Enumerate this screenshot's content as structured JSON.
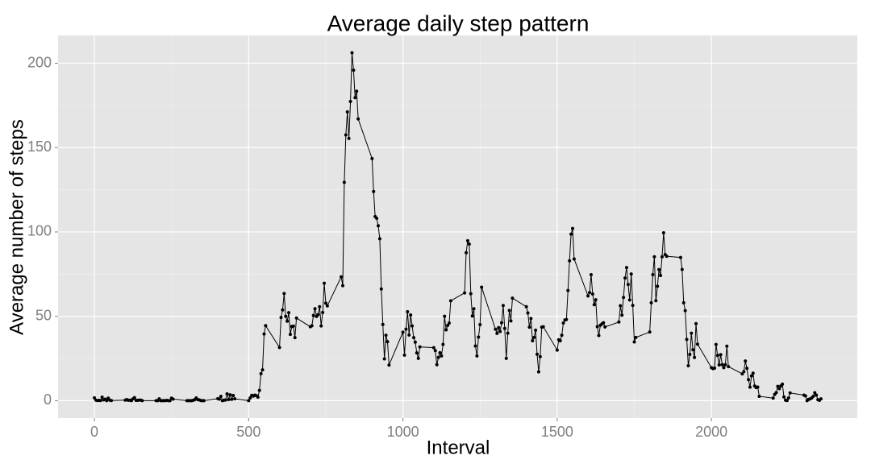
{
  "chart_data": {
    "type": "line",
    "title": "Average daily step pattern",
    "x_label": "Interval",
    "y_label": "Average number of steps",
    "color": "#000000",
    "grid": true,
    "xlim": [
      -117.75,
      2472.75
    ],
    "ylim": [
      -10.31,
      216.48
    ],
    "xticks": [
      0,
      500,
      1000,
      1500,
      2000
    ],
    "yticks": [
      0,
      50,
      100,
      150,
      200
    ],
    "x": [
      0,
      5,
      10,
      15,
      20,
      25,
      30,
      35,
      40,
      45,
      50,
      55,
      100,
      105,
      110,
      115,
      120,
      125,
      130,
      135,
      140,
      145,
      150,
      155,
      200,
      205,
      210,
      215,
      220,
      225,
      230,
      235,
      240,
      245,
      250,
      255,
      300,
      305,
      310,
      315,
      320,
      325,
      330,
      335,
      340,
      345,
      350,
      355,
      400,
      405,
      410,
      415,
      420,
      425,
      430,
      435,
      440,
      445,
      450,
      455,
      500,
      505,
      510,
      515,
      520,
      525,
      530,
      535,
      540,
      545,
      550,
      555,
      600,
      605,
      610,
      615,
      620,
      625,
      630,
      635,
      640,
      645,
      650,
      655,
      700,
      705,
      710,
      715,
      720,
      725,
      730,
      735,
      740,
      745,
      750,
      755,
      800,
      805,
      810,
      815,
      820,
      825,
      830,
      835,
      840,
      845,
      850,
      855,
      900,
      905,
      910,
      915,
      920,
      925,
      930,
      935,
      940,
      945,
      950,
      955,
      1000,
      1005,
      1010,
      1015,
      1020,
      1025,
      1030,
      1035,
      1040,
      1045,
      1050,
      1055,
      1100,
      1105,
      1110,
      1115,
      1120,
      1125,
      1130,
      1135,
      1140,
      1145,
      1150,
      1155,
      1200,
      1205,
      1210,
      1215,
      1220,
      1225,
      1230,
      1235,
      1240,
      1245,
      1250,
      1255,
      1300,
      1305,
      1310,
      1315,
      1320,
      1325,
      1330,
      1335,
      1340,
      1345,
      1350,
      1355,
      1400,
      1405,
      1410,
      1415,
      1420,
      1425,
      1430,
      1435,
      1440,
      1445,
      1450,
      1455,
      1500,
      1505,
      1510,
      1515,
      1520,
      1525,
      1530,
      1535,
      1540,
      1545,
      1550,
      1555,
      1600,
      1605,
      1610,
      1615,
      1620,
      1625,
      1630,
      1635,
      1640,
      1645,
      1650,
      1655,
      1700,
      1705,
      1710,
      1715,
      1720,
      1725,
      1730,
      1735,
      1740,
      1745,
      1750,
      1755,
      1800,
      1805,
      1810,
      1815,
      1820,
      1825,
      1830,
      1835,
      1840,
      1845,
      1850,
      1855,
      1900,
      1905,
      1910,
      1915,
      1920,
      1925,
      1930,
      1935,
      1940,
      1945,
      1950,
      1955,
      2000,
      2005,
      2010,
      2015,
      2020,
      2025,
      2030,
      2035,
      2040,
      2045,
      2050,
      2055,
      2100,
      2105,
      2110,
      2115,
      2120,
      2125,
      2130,
      2135,
      2140,
      2145,
      2150,
      2155,
      2200,
      2205,
      2210,
      2215,
      2220,
      2225,
      2230,
      2235,
      2240,
      2245,
      2250,
      2255,
      2300,
      2305,
      2310,
      2315,
      2320,
      2325,
      2330,
      2335,
      2340,
      2345,
      2350,
      2355
    ],
    "values": [
      1.7,
      0.3,
      0.1,
      0.2,
      0.1,
      2.1,
      0.5,
      0.9,
      0,
      1.5,
      0.3,
      0.1,
      0.3,
      0.7,
      0.2,
      0.3,
      0,
      1.1,
      1.8,
      0.2,
      0.2,
      0.4,
      0.3,
      0,
      0,
      0,
      1.1,
      0,
      0,
      0.1,
      0,
      0.2,
      0,
      0,
      1.5,
      0.9,
      0,
      0,
      0,
      0,
      0.2,
      0.6,
      1.6,
      0.6,
      0.5,
      0.1,
      0,
      0,
      1.2,
      0.9,
      2.6,
      0,
      0.3,
      0.4,
      4.1,
      0.7,
      3.5,
      0.8,
      3.1,
      1.1,
      0,
      1.6,
      3.2,
      2.7,
      3.3,
      3,
      2.1,
      6.1,
      16,
      18.3,
      39.5,
      44.5,
      31.5,
      49.3,
      53.8,
      63.5,
      50,
      47.1,
      52.2,
      39.3,
      44,
      44.2,
      37.4,
      49,
      43.8,
      44.4,
      50.5,
      54.5,
      49.9,
      51,
      55.7,
      44.3,
      52.3,
      69.6,
      57.8,
      56.2,
      73.4,
      68.2,
      129.4,
      157.5,
      171.2,
      155.4,
      177.3,
      206.2,
      195.9,
      179.6,
      183.4,
      167,
      143.5,
      124,
      109.1,
      108.1,
      103.7,
      96,
      66.2,
      45.2,
      24.8,
      38.8,
      35,
      21.1,
      40.6,
      27,
      42.4,
      52.7,
      38.9,
      50.8,
      44.3,
      37.4,
      34.7,
      28.3,
      25.1,
      31.9,
      31.4,
      29.7,
      21.3,
      25.6,
      28.4,
      26.5,
      33.4,
      50,
      42,
      44.6,
      46,
      59.2,
      63.9,
      87.7,
      94.8,
      92.8,
      63.4,
      50.2,
      54.5,
      32.4,
      26.5,
      37.7,
      45.1,
      67.3,
      42.3,
      39.9,
      43.3,
      41,
      46.2,
      56.4,
      42.8,
      25.1,
      40,
      53.5,
      47.3,
      60.8,
      55.7,
      52,
      43.6,
      48.7,
      35.5,
      37.5,
      41.8,
      27.5,
      17.1,
      26.1,
      43.6,
      43.8,
      30,
      36.1,
      35.5,
      38.8,
      46,
      47.8,
      48.1,
      65.3,
      82.9,
      98.7,
      102.1,
      84,
      62.1,
      64.1,
      74.7,
      63.2,
      56.9,
      59.8,
      43.9,
      38.6,
      44.7,
      45.5,
      46.2,
      43.7,
      46.6,
      56.3,
      50.7,
      61.2,
      72.7,
      78.9,
      68.9,
      59.7,
      75.1,
      56.5,
      34.8,
      37.5,
      40.7,
      58,
      74.7,
      85.3,
      59.3,
      67.8,
      77.7,
      74.2,
      85.3,
      99.5,
      86.6,
      85.6,
      84.9,
      77.8,
      58,
      53.4,
      36.3,
      20.7,
      27.4,
      40,
      30.2,
      25.6,
      45.7,
      33.5,
      19.6,
      19,
      19.3,
      33.3,
      26.8,
      21.2,
      27.3,
      21.3,
      19.6,
      21.3,
      32.3,
      20.2,
      15.9,
      17.2,
      23.5,
      19.2,
      12.5,
      8,
      14.7,
      16.3,
      8.7,
      7.8,
      8.1,
      2.6,
      1.5,
      3.7,
      4.8,
      8.5,
      7.1,
      8.7,
      9.8,
      2.2,
      0.3,
      0.1,
      1.6,
      4.6,
      3.3,
      2.8,
      0,
      0.8,
      1,
      1.6,
      2.6,
      4.7,
      3.3,
      0.6,
      0.2,
      1.1
    ]
  }
}
